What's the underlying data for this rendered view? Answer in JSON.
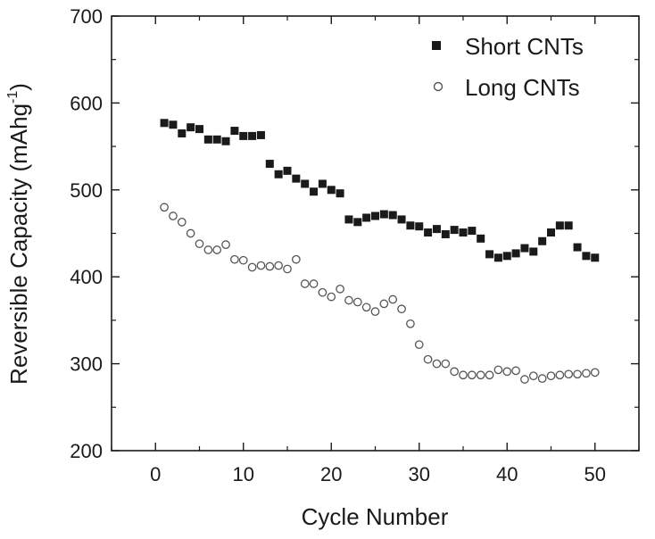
{
  "chart_data": {
    "type": "scatter",
    "title": "",
    "xlabel": "Cycle Number",
    "ylabel_main": "Reversible Capacity (mAhg",
    "ylabel_sup": "-1",
    "ylabel_close": ")",
    "xlim": [
      -5,
      55
    ],
    "ylim": [
      200,
      700
    ],
    "x_ticks": [
      0,
      10,
      20,
      30,
      40,
      50
    ],
    "x_tick_labels": [
      "0",
      "10",
      "20",
      "30",
      "40",
      "50"
    ],
    "y_ticks": [
      200,
      300,
      400,
      500,
      600,
      700
    ],
    "y_tick_labels": [
      "200",
      "300",
      "400",
      "500",
      "600",
      "700"
    ],
    "grid": false,
    "legend_position": "top-right",
    "x": [
      1,
      2,
      3,
      4,
      5,
      6,
      7,
      8,
      9,
      10,
      11,
      12,
      13,
      14,
      15,
      16,
      17,
      18,
      19,
      20,
      21,
      22,
      23,
      24,
      25,
      26,
      27,
      28,
      29,
      30,
      31,
      32,
      33,
      34,
      35,
      36,
      37,
      38,
      39,
      40,
      41,
      42,
      43,
      44,
      45,
      46,
      47,
      48,
      49,
      50
    ],
    "series": [
      {
        "name": "Short CNTs",
        "marker": "filled-square",
        "color": "#1a1a1a",
        "values": [
          577,
          575,
          565,
          572,
          570,
          558,
          558,
          556,
          568,
          562,
          562,
          563,
          530,
          518,
          522,
          513,
          507,
          498,
          507,
          500,
          496,
          466,
          463,
          468,
          470,
          472,
          471,
          466,
          459,
          458,
          451,
          455,
          449,
          454,
          451,
          453,
          444,
          426,
          422,
          424,
          427,
          433,
          429,
          441,
          451,
          459,
          459,
          434,
          424,
          422
        ]
      },
      {
        "name": "Long CNTs",
        "marker": "open-circle",
        "color": "#555555",
        "values": [
          480,
          470,
          463,
          450,
          438,
          431,
          431,
          437,
          420,
          419,
          411,
          413,
          412,
          413,
          409,
          420,
          392,
          392,
          382,
          377,
          386,
          373,
          371,
          365,
          360,
          369,
          374,
          363,
          346,
          322,
          305,
          300,
          300,
          291,
          287,
          287,
          287,
          287,
          293,
          291,
          292,
          282,
          286,
          283,
          286,
          287,
          288,
          288,
          289,
          290
        ]
      }
    ]
  }
}
